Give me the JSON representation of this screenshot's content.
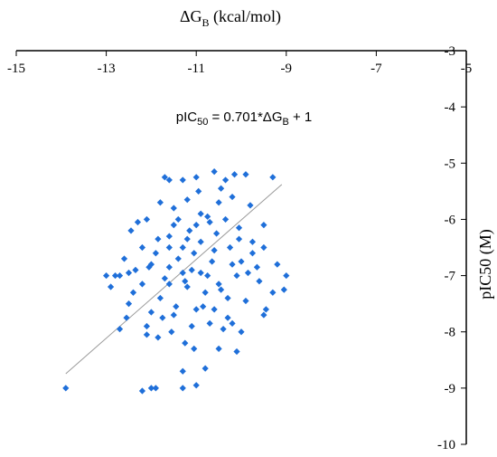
{
  "chart_data": {
    "type": "scatter",
    "title": "",
    "xlabel": {
      "main": "ΔG",
      "sub": "B",
      "rest": " (kcal/mol)"
    },
    "ylabel": "pIC50 (M)",
    "xlim": [
      -15,
      -5
    ],
    "ylim": [
      -10,
      -3
    ],
    "x_ticks": [
      -15,
      -13,
      -11,
      -9,
      -7,
      -5
    ],
    "x_tick_labels": [
      "-15",
      "-13",
      "-11",
      "-9",
      "-7",
      "-5"
    ],
    "y_ticks": [
      -3,
      -4,
      -5,
      -6,
      -7,
      -8,
      -9,
      -10
    ],
    "y_tick_labels": [
      "-3",
      "-4",
      "-5",
      "-6",
      "-7",
      "-8",
      "-9",
      "-10"
    ],
    "equation": {
      "p1": "pIC",
      "sub1": "50",
      "p2": " = 0.701*ΔG",
      "sub2": "B",
      "p3": " + 1"
    },
    "trendline": {
      "slope": 0.701,
      "intercept": 1,
      "x_range": [
        -13.9,
        -9.1
      ],
      "color": "#9a9a9a"
    },
    "marker_color": "#1f6fd9",
    "series": [
      {
        "points": [
          [
            -13.9,
            -9.0
          ],
          [
            -12.2,
            -9.05
          ],
          [
            -12.0,
            -9.0
          ],
          [
            -11.9,
            -9.0
          ],
          [
            -11.3,
            -9.0
          ],
          [
            -11.0,
            -8.95
          ],
          [
            -11.3,
            -8.7
          ],
          [
            -10.8,
            -8.65
          ],
          [
            -11.05,
            -8.3
          ],
          [
            -10.1,
            -8.35
          ],
          [
            -12.1,
            -8.05
          ],
          [
            -11.85,
            -8.1
          ],
          [
            -11.55,
            -8.0
          ],
          [
            -11.1,
            -7.9
          ],
          [
            -10.7,
            -7.85
          ],
          [
            -10.4,
            -7.95
          ],
          [
            -10.0,
            -8.0
          ],
          [
            -10.5,
            -8.3
          ],
          [
            -12.7,
            -7.95
          ],
          [
            -12.55,
            -7.75
          ],
          [
            -12.0,
            -7.65
          ],
          [
            -11.5,
            -7.7
          ],
          [
            -11.0,
            -7.6
          ],
          [
            -10.6,
            -7.6
          ],
          [
            -10.3,
            -7.75
          ],
          [
            -9.5,
            -7.7
          ],
          [
            -9.45,
            -7.6
          ],
          [
            -12.9,
            -7.2
          ],
          [
            -12.4,
            -7.3
          ],
          [
            -11.8,
            -7.4
          ],
          [
            -11.2,
            -7.2
          ],
          [
            -10.8,
            -7.3
          ],
          [
            -10.3,
            -7.4
          ],
          [
            -9.9,
            -7.45
          ],
          [
            -9.3,
            -7.3
          ],
          [
            -9.05,
            -7.25
          ],
          [
            -12.8,
            -7.0
          ],
          [
            -12.5,
            -6.95
          ],
          [
            -12.0,
            -6.8
          ],
          [
            -11.6,
            -6.85
          ],
          [
            -11.1,
            -6.9
          ],
          [
            -10.75,
            -7.0
          ],
          [
            -10.1,
            -7.0
          ],
          [
            -9.6,
            -7.1
          ],
          [
            -9.0,
            -7.0
          ],
          [
            -9.2,
            -6.8
          ],
          [
            -13.0,
            -7.0
          ],
          [
            -12.2,
            -6.5
          ],
          [
            -11.9,
            -6.6
          ],
          [
            -11.6,
            -6.5
          ],
          [
            -11.3,
            -6.5
          ],
          [
            -10.9,
            -6.4
          ],
          [
            -10.6,
            -6.55
          ],
          [
            -10.25,
            -6.5
          ],
          [
            -9.75,
            -6.6
          ],
          [
            -9.5,
            -6.5
          ],
          [
            -12.3,
            -6.05
          ],
          [
            -12.1,
            -6.0
          ],
          [
            -11.6,
            -6.3
          ],
          [
            -11.4,
            -6.0
          ],
          [
            -11.0,
            -6.1
          ],
          [
            -10.7,
            -6.05
          ],
          [
            -10.35,
            -6.0
          ],
          [
            -10.05,
            -6.15
          ],
          [
            -9.5,
            -6.1
          ],
          [
            -11.8,
            -5.7
          ],
          [
            -11.5,
            -5.8
          ],
          [
            -11.2,
            -5.65
          ],
          [
            -10.95,
            -5.5
          ],
          [
            -10.5,
            -5.7
          ],
          [
            -10.2,
            -5.6
          ],
          [
            -9.8,
            -5.75
          ],
          [
            -11.7,
            -5.25
          ],
          [
            -11.3,
            -5.3
          ],
          [
            -11.0,
            -5.25
          ],
          [
            -10.6,
            -5.15
          ],
          [
            -10.35,
            -5.3
          ],
          [
            -10.15,
            -5.2
          ],
          [
            -9.9,
            -5.2
          ],
          [
            -9.3,
            -5.25
          ],
          [
            -11.6,
            -5.3
          ],
          [
            -10.9,
            -5.9
          ],
          [
            -12.5,
            -7.5
          ],
          [
            -12.2,
            -7.15
          ],
          [
            -11.7,
            -7.05
          ],
          [
            -11.45,
            -7.55
          ],
          [
            -11.3,
            -6.95
          ],
          [
            -10.5,
            -7.15
          ],
          [
            -10.2,
            -6.8
          ],
          [
            -9.85,
            -6.95
          ],
          [
            -12.45,
            -6.2
          ],
          [
            -11.05,
            -6.6
          ],
          [
            -10.55,
            -6.25
          ],
          [
            -10.45,
            -5.45
          ],
          [
            -10.75,
            -5.95
          ],
          [
            -11.15,
            -6.2
          ],
          [
            -11.75,
            -7.75
          ],
          [
            -10.85,
            -7.55
          ],
          [
            -10.2,
            -7.85
          ],
          [
            -11.25,
            -8.2
          ],
          [
            -12.05,
            -6.85
          ],
          [
            -11.5,
            -6.1
          ],
          [
            -11.85,
            -6.35
          ],
          [
            -10.05,
            -6.35
          ],
          [
            -9.65,
            -6.85
          ],
          [
            -12.6,
            -6.7
          ],
          [
            -12.35,
            -6.9
          ],
          [
            -12.7,
            -7.0
          ],
          [
            -12.1,
            -7.9
          ],
          [
            -11.4,
            -6.7
          ],
          [
            -11.2,
            -6.35
          ],
          [
            -10.9,
            -6.95
          ],
          [
            -10.65,
            -6.75
          ],
          [
            -10.0,
            -6.75
          ],
          [
            -9.75,
            -6.4
          ],
          [
            -11.6,
            -7.15
          ],
          [
            -11.25,
            -7.1
          ],
          [
            -10.45,
            -7.25
          ]
        ]
      }
    ]
  }
}
